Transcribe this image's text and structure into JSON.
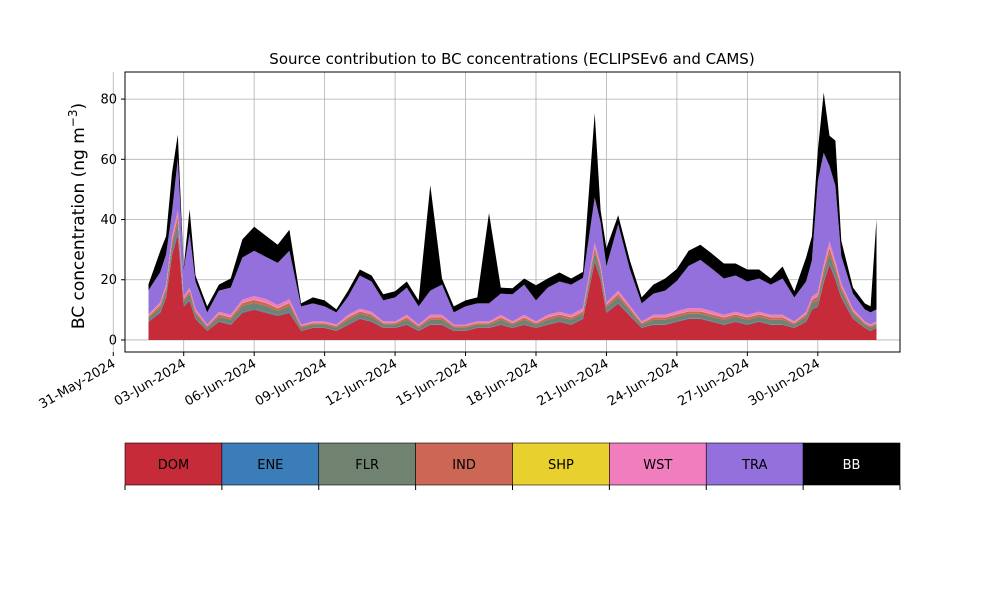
{
  "chart_data": {
    "type": "area",
    "stacked": true,
    "title": "Source contribution to BC concentrations (ECLIPSEv6 and CAMS)",
    "ylabel": "BC concentration (ng m",
    "ylabel_unit_superscript": "−3",
    "ylabel_close": ")",
    "xlabel": "",
    "x_axis_type": "date",
    "xlim": [
      "2024-05-31T12:00",
      "2024-07-03T12:00"
    ],
    "ylim": [
      -4,
      89
    ],
    "yticks": [
      0,
      20,
      40,
      60,
      80
    ],
    "xticks": [
      "2024-05-31",
      "2024-06-03",
      "2024-06-06",
      "2024-06-09",
      "2024-06-12",
      "2024-06-15",
      "2024-06-18",
      "2024-06-21",
      "2024-06-24",
      "2024-06-27",
      "2024-06-30"
    ],
    "xtick_labels": [
      "31-May-2024",
      "03-Jun-2024",
      "06-Jun-2024",
      "09-Jun-2024",
      "12-Jun-2024",
      "15-Jun-2024",
      "18-Jun-2024",
      "21-Jun-2024",
      "24-Jun-2024",
      "27-Jun-2024",
      "30-Jun-2024"
    ],
    "grid": true,
    "legend_placement": "below chart, horizontal colour bar",
    "x": [
      "2024-06-01T12:00",
      "2024-06-02T00:00",
      "2024-06-02T06:00",
      "2024-06-02T12:00",
      "2024-06-02T18:00",
      "2024-06-03T00:00",
      "2024-06-03T06:00",
      "2024-06-03T12:00",
      "2024-06-04T00:00",
      "2024-06-04T12:00",
      "2024-06-05T00:00",
      "2024-06-05T12:00",
      "2024-06-06T00:00",
      "2024-06-06T12:00",
      "2024-06-07T00:00",
      "2024-06-07T12:00",
      "2024-06-08T00:00",
      "2024-06-08T12:00",
      "2024-06-09T00:00",
      "2024-06-09T12:00",
      "2024-06-10T00:00",
      "2024-06-10T12:00",
      "2024-06-11T00:00",
      "2024-06-11T12:00",
      "2024-06-12T00:00",
      "2024-06-12T12:00",
      "2024-06-13T00:00",
      "2024-06-13T12:00",
      "2024-06-14T00:00",
      "2024-06-14T12:00",
      "2024-06-15T00:00",
      "2024-06-15T12:00",
      "2024-06-16T00:00",
      "2024-06-16T12:00",
      "2024-06-17T00:00",
      "2024-06-17T12:00",
      "2024-06-18T00:00",
      "2024-06-18T12:00",
      "2024-06-19T00:00",
      "2024-06-19T12:00",
      "2024-06-20T00:00",
      "2024-06-20T12:00",
      "2024-06-20T18:00",
      "2024-06-21T00:00",
      "2024-06-21T12:00",
      "2024-06-22T00:00",
      "2024-06-22T12:00",
      "2024-06-23T00:00",
      "2024-06-23T12:00",
      "2024-06-24T00:00",
      "2024-06-24T12:00",
      "2024-06-25T00:00",
      "2024-06-25T12:00",
      "2024-06-26T00:00",
      "2024-06-26T12:00",
      "2024-06-27T00:00",
      "2024-06-27T12:00",
      "2024-06-28T00:00",
      "2024-06-28T12:00",
      "2024-06-29T00:00",
      "2024-06-29T12:00",
      "2024-06-29T18:00",
      "2024-06-30T00:00",
      "2024-06-30T06:00",
      "2024-06-30T12:00",
      "2024-06-30T18:00",
      "2024-07-01T00:00",
      "2024-07-01T12:00",
      "2024-07-02T00:00",
      "2024-07-02T06:00",
      "2024-07-02T12:00"
    ],
    "series": [
      {
        "name": "DOM",
        "color": "#c62b3a",
        "values": [
          6,
          9,
          14,
          28,
          35,
          11,
          13,
          7,
          3,
          6,
          5,
          9,
          10,
          9,
          8,
          9,
          3,
          4,
          4,
          3,
          5,
          7,
          6,
          4,
          4,
          5,
          3,
          5,
          5,
          3,
          3,
          4,
          4,
          5,
          4,
          5,
          4,
          5,
          6,
          5,
          7,
          26,
          20,
          9,
          12,
          8,
          4,
          5,
          5,
          6,
          7,
          7,
          6,
          5,
          6,
          5,
          6,
          5,
          5,
          4,
          6,
          10,
          11,
          19,
          25,
          20,
          14,
          7,
          4,
          3,
          4
        ]
      },
      {
        "name": "ENE",
        "color": "#3a7db8",
        "values": [
          0.3,
          0.3,
          0.4,
          0.8,
          1,
          0.3,
          0.3,
          0.2,
          0.1,
          0.2,
          0.2,
          0.3,
          0.3,
          0.3,
          0.2,
          0.3,
          0.1,
          0.1,
          0.1,
          0.1,
          0.2,
          0.2,
          0.2,
          0.1,
          0.1,
          0.2,
          0.1,
          0.2,
          0.2,
          0.1,
          0.1,
          0.1,
          0.1,
          0.2,
          0.1,
          0.2,
          0.1,
          0.2,
          0.2,
          0.2,
          0.2,
          0.6,
          0.5,
          0.3,
          0.3,
          0.2,
          0.1,
          0.2,
          0.2,
          0.2,
          0.2,
          0.2,
          0.2,
          0.2,
          0.2,
          0.2,
          0.2,
          0.2,
          0.2,
          0.1,
          0.2,
          0.3,
          0.3,
          0.5,
          0.6,
          0.5,
          0.4,
          0.2,
          0.1,
          0.1,
          0.1
        ]
      },
      {
        "name": "FLR",
        "color": "#6f8370",
        "values": [
          1,
          1.5,
          2,
          2.5,
          3,
          1.5,
          2,
          1.5,
          1,
          1.5,
          1.5,
          2,
          2,
          2,
          1.5,
          2,
          1,
          1,
          1,
          1,
          1.5,
          1.5,
          1.5,
          1,
          1,
          1.5,
          1,
          1.5,
          1.5,
          1,
          1,
          1,
          1,
          1.5,
          1,
          1.5,
          1,
          1.5,
          1.5,
          1.5,
          1.5,
          2.5,
          2,
          1.5,
          2,
          1.5,
          1,
          1.5,
          1.5,
          1.5,
          1.5,
          1.5,
          1.5,
          1.5,
          1.5,
          1.5,
          1.5,
          1.5,
          1.5,
          1,
          1.5,
          2,
          2,
          2.5,
          3,
          2.5,
          2,
          1.5,
          1,
          1,
          1
        ]
      },
      {
        "name": "IND",
        "color": "#cc6655",
        "values": [
          0.6,
          0.8,
          1,
          1.5,
          2,
          0.8,
          1,
          0.8,
          0.5,
          0.8,
          0.8,
          1,
          1,
          1,
          0.8,
          1,
          0.5,
          0.5,
          0.5,
          0.5,
          0.8,
          0.8,
          0.8,
          0.5,
          0.5,
          0.8,
          0.5,
          0.8,
          0.8,
          0.5,
          0.5,
          0.5,
          0.5,
          0.8,
          0.5,
          0.8,
          0.5,
          0.8,
          0.8,
          0.8,
          0.8,
          1.5,
          1.2,
          0.8,
          1,
          0.8,
          0.5,
          0.8,
          0.8,
          0.8,
          0.8,
          0.8,
          0.8,
          0.8,
          0.8,
          0.8,
          0.8,
          0.8,
          0.8,
          0.5,
          0.8,
          1,
          1.2,
          1.5,
          2,
          1.5,
          1.2,
          0.8,
          0.5,
          0.5,
          0.5
        ]
      },
      {
        "name": "SHP",
        "color": "#e8d02e",
        "values": [
          0.1,
          0.1,
          0.1,
          0.2,
          0.2,
          0.1,
          0.1,
          0.1,
          0.05,
          0.1,
          0.1,
          0.1,
          0.1,
          0.1,
          0.1,
          0.1,
          0.05,
          0.05,
          0.05,
          0.05,
          0.1,
          0.1,
          0.1,
          0.05,
          0.05,
          0.1,
          0.05,
          0.1,
          0.1,
          0.05,
          0.05,
          0.05,
          0.05,
          0.1,
          0.05,
          0.1,
          0.05,
          0.1,
          0.1,
          0.1,
          0.1,
          0.2,
          0.2,
          0.1,
          0.1,
          0.1,
          0.05,
          0.1,
          0.1,
          0.1,
          0.1,
          0.1,
          0.1,
          0.1,
          0.1,
          0.1,
          0.1,
          0.1,
          0.1,
          0.05,
          0.1,
          0.1,
          0.1,
          0.2,
          0.2,
          0.2,
          0.1,
          0.1,
          0.05,
          0.05,
          0.05
        ]
      },
      {
        "name": "WST",
        "color": "#f07ebe",
        "values": [
          0.5,
          0.8,
          1,
          1.5,
          2,
          0.8,
          1,
          0.8,
          0.5,
          0.8,
          0.8,
          1,
          1.2,
          1.2,
          1,
          1.2,
          0.5,
          0.5,
          0.5,
          0.5,
          0.8,
          0.8,
          0.8,
          0.5,
          0.5,
          0.8,
          0.5,
          0.8,
          0.8,
          0.5,
          0.5,
          0.5,
          0.5,
          0.8,
          0.5,
          0.8,
          0.5,
          0.8,
          0.8,
          0.8,
          1,
          1.5,
          1.2,
          0.8,
          1,
          0.8,
          0.5,
          0.8,
          0.8,
          1,
          1,
          1,
          1,
          0.8,
          0.8,
          0.8,
          0.8,
          0.8,
          0.8,
          0.5,
          0.8,
          1,
          1.2,
          1.5,
          2,
          1.5,
          1.2,
          0.8,
          0.5,
          0.5,
          0.5
        ]
      },
      {
        "name": "TRA",
        "color": "#9370db",
        "values": [
          8,
          10,
          10,
          8,
          17,
          9,
          18,
          9,
          4,
          7,
          9,
          14,
          15,
          14,
          14,
          16,
          6,
          6,
          5,
          4,
          6,
          11,
          10,
          7,
          8,
          9,
          6,
          8,
          10,
          4,
          6,
          6,
          6,
          7,
          9,
          10,
          7,
          9,
          10,
          10,
          10,
          15,
          14,
          12,
          22,
          12,
          6,
          7,
          8,
          10,
          14,
          16,
          14,
          12,
          12,
          11,
          11,
          10,
          12,
          8,
          10,
          12,
          37,
          37,
          25,
          25,
          9,
          5,
          4,
          4,
          4
        ]
      },
      {
        "name": "BB",
        "color": "#000000",
        "values": [
          2,
          7,
          6,
          13,
          8,
          0.5,
          8,
          2,
          2,
          2,
          3,
          6,
          8,
          7,
          6,
          7,
          1,
          2,
          2,
          1,
          2,
          2,
          2,
          2,
          2,
          2,
          2,
          35,
          2,
          2,
          2,
          2,
          30,
          2,
          2,
          2,
          5,
          3,
          3,
          2,
          2,
          28,
          4,
          6,
          3,
          3,
          2,
          3,
          4,
          4,
          5,
          5,
          5,
          5,
          4,
          4,
          3,
          2,
          4,
          2,
          8,
          8,
          10,
          20,
          10,
          15,
          5,
          2,
          2,
          2,
          30
        ]
      }
    ]
  }
}
